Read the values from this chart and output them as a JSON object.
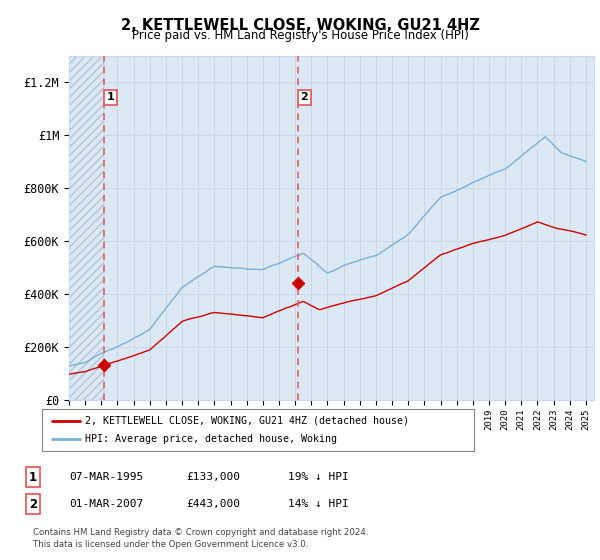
{
  "title": "2, KETTLEWELL CLOSE, WOKING, GU21 4HZ",
  "subtitle": "Price paid vs. HM Land Registry's House Price Index (HPI)",
  "legend_line1": "2, KETTLEWELL CLOSE, WOKING, GU21 4HZ (detached house)",
  "legend_line2": "HPI: Average price, detached house, Woking",
  "footnote": "Contains HM Land Registry data © Crown copyright and database right 2024.\nThis data is licensed under the Open Government Licence v3.0.",
  "transaction1_label": "1",
  "transaction1_date": "07-MAR-1995",
  "transaction1_price": "£133,000",
  "transaction1_hpi": "19% ↓ HPI",
  "transaction1_x": 1995.17,
  "transaction1_y": 133000,
  "transaction2_label": "2",
  "transaction2_date": "01-MAR-2007",
  "transaction2_price": "£443,000",
  "transaction2_hpi": "14% ↓ HPI",
  "transaction2_x": 2007.17,
  "transaction2_y": 443000,
  "xmin": 1993,
  "xmax": 2025.5,
  "ymin": 0,
  "ymax": 1300000,
  "yticks": [
    0,
    200000,
    400000,
    600000,
    800000,
    1000000,
    1200000
  ],
  "ytick_labels": [
    "£0",
    "£200K",
    "£400K",
    "£600K",
    "£800K",
    "£1M",
    "£1.2M"
  ],
  "hpi_color": "#7bafd4",
  "price_color": "#cc0000",
  "vline_color": "#e06060",
  "bg_hatch_color": "#dde8f5",
  "grid_color": "#c8d8e8"
}
